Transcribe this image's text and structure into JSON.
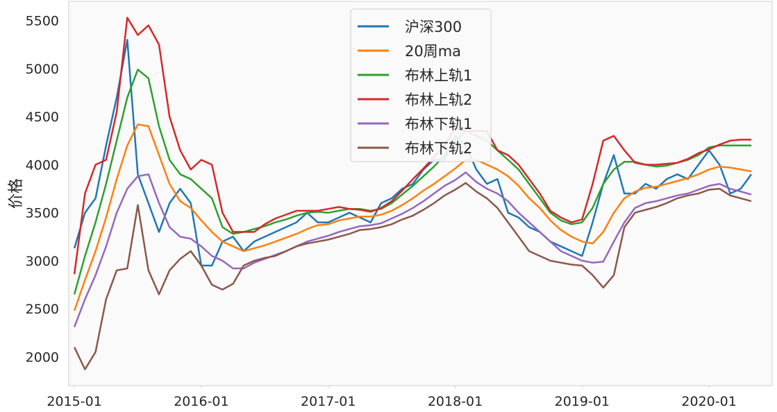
{
  "chart_data": {
    "type": "line",
    "title": "",
    "xlabel": "",
    "ylabel": "价格",
    "ylim": [
      1700,
      5700
    ],
    "xlim": [
      "2014-12-15",
      "2020-06-30"
    ],
    "grid": false,
    "legend_position": "top-center",
    "x_ticks": [
      "2015-01",
      "2016-01",
      "2017-01",
      "2018-01",
      "2019-01",
      "2020-01"
    ],
    "y_ticks": [
      2000,
      2500,
      3000,
      3500,
      4000,
      4500,
      5000,
      5500
    ],
    "x": [
      "2015-01",
      "2015-02",
      "2015-03",
      "2015-04",
      "2015-05",
      "2015-06",
      "2015-07",
      "2015-08",
      "2015-09",
      "2015-10",
      "2015-11",
      "2015-12",
      "2016-01",
      "2016-02",
      "2016-03",
      "2016-04",
      "2016-05",
      "2016-06",
      "2016-07",
      "2016-08",
      "2016-09",
      "2016-10",
      "2016-11",
      "2016-12",
      "2017-01",
      "2017-02",
      "2017-03",
      "2017-04",
      "2017-05",
      "2017-06",
      "2017-07",
      "2017-08",
      "2017-09",
      "2017-10",
      "2017-11",
      "2017-12",
      "2018-01",
      "2018-02",
      "2018-03",
      "2018-04",
      "2018-05",
      "2018-06",
      "2018-07",
      "2018-08",
      "2018-09",
      "2018-10",
      "2018-11",
      "2018-12",
      "2019-01",
      "2019-02",
      "2019-03",
      "2019-04",
      "2019-05",
      "2019-06",
      "2019-07",
      "2019-08",
      "2019-09",
      "2019-10",
      "2019-11",
      "2019-12",
      "2020-01",
      "2020-02",
      "2020-03",
      "2020-04",
      "2020-05"
    ],
    "series": [
      {
        "name": "沪深300",
        "color": "#1f77b4",
        "values": [
          3130,
          3500,
          3650,
          4200,
          4700,
          5300,
          3900,
          3600,
          3300,
          3600,
          3750,
          3600,
          2950,
          2950,
          3200,
          3250,
          3100,
          3200,
          3250,
          3300,
          3350,
          3400,
          3500,
          3400,
          3400,
          3450,
          3500,
          3450,
          3400,
          3600,
          3650,
          3750,
          3800,
          3950,
          4050,
          4050,
          4300,
          4200,
          3950,
          3800,
          3850,
          3500,
          3450,
          3350,
          3300,
          3200,
          3150,
          3100,
          3050,
          3400,
          3800,
          4100,
          3700,
          3700,
          3800,
          3750,
          3850,
          3900,
          3850,
          4000,
          4150,
          4000,
          3700,
          3750,
          3900
        ]
      },
      {
        "name": "20周ma",
        "color": "#ff7f0e",
        "values": [
          2480,
          2800,
          3100,
          3450,
          3850,
          4200,
          4420,
          4400,
          4100,
          3800,
          3620,
          3550,
          3420,
          3300,
          3200,
          3150,
          3100,
          3130,
          3160,
          3200,
          3240,
          3280,
          3330,
          3370,
          3380,
          3420,
          3440,
          3460,
          3460,
          3480,
          3520,
          3580,
          3650,
          3730,
          3800,
          3880,
          3960,
          4050,
          4050,
          4000,
          3950,
          3880,
          3780,
          3650,
          3550,
          3420,
          3320,
          3250,
          3200,
          3180,
          3300,
          3500,
          3650,
          3720,
          3760,
          3770,
          3800,
          3830,
          3860,
          3900,
          3950,
          3980,
          3970,
          3950,
          3930
        ]
      },
      {
        "name": "布林上轨1",
        "color": "#2ca02c",
        "values": [
          2650,
          3050,
          3400,
          3800,
          4250,
          4700,
          4990,
          4900,
          4400,
          4050,
          3900,
          3850,
          3750,
          3650,
          3350,
          3280,
          3300,
          3330,
          3360,
          3400,
          3430,
          3470,
          3500,
          3510,
          3500,
          3520,
          3540,
          3540,
          3520,
          3540,
          3600,
          3690,
          3780,
          3880,
          3980,
          4100,
          4250,
          4350,
          4300,
          4250,
          4150,
          4050,
          3950,
          3800,
          3650,
          3500,
          3420,
          3380,
          3400,
          3550,
          3800,
          3950,
          4030,
          4030,
          4000,
          3980,
          3990,
          4020,
          4050,
          4100,
          4180,
          4200,
          4200,
          4200,
          4200
        ]
      },
      {
        "name": "布林上轨2",
        "color": "#d62728",
        "values": [
          2860,
          3700,
          4000,
          4050,
          4550,
          5530,
          5350,
          5450,
          5250,
          4500,
          4150,
          3950,
          4050,
          4000,
          3500,
          3300,
          3300,
          3300,
          3380,
          3440,
          3480,
          3520,
          3520,
          3520,
          3540,
          3560,
          3540,
          3530,
          3510,
          3550,
          3620,
          3730,
          3850,
          3960,
          4080,
          4200,
          4380,
          4350,
          4350,
          4350,
          4150,
          4100,
          4000,
          3850,
          3700,
          3520,
          3450,
          3400,
          3430,
          3800,
          4250,
          4300,
          4150,
          4020,
          4000,
          4000,
          4010,
          4020,
          4060,
          4120,
          4160,
          4210,
          4250,
          4260,
          4260
        ]
      },
      {
        "name": "布林下轨1",
        "color": "#9467bd",
        "values": [
          2310,
          2600,
          2850,
          3150,
          3500,
          3750,
          3880,
          3900,
          3600,
          3350,
          3250,
          3230,
          3150,
          3050,
          3000,
          2920,
          2920,
          2980,
          3020,
          3060,
          3100,
          3150,
          3200,
          3230,
          3260,
          3300,
          3330,
          3360,
          3370,
          3390,
          3440,
          3490,
          3550,
          3620,
          3700,
          3780,
          3840,
          3920,
          3820,
          3750,
          3700,
          3620,
          3500,
          3400,
          3300,
          3200,
          3100,
          3050,
          3000,
          2980,
          2990,
          3200,
          3400,
          3550,
          3600,
          3620,
          3650,
          3680,
          3700,
          3740,
          3780,
          3800,
          3750,
          3720,
          3690
        ]
      },
      {
        "name": "布林下轨2",
        "color": "#8c564b",
        "values": [
          2100,
          1870,
          2050,
          2600,
          2900,
          2920,
          3580,
          2900,
          2650,
          2900,
          3020,
          3100,
          2950,
          2750,
          2700,
          2760,
          2950,
          3000,
          3030,
          3050,
          3100,
          3150,
          3180,
          3200,
          3220,
          3250,
          3280,
          3320,
          3330,
          3350,
          3380,
          3430,
          3470,
          3530,
          3600,
          3680,
          3740,
          3810,
          3720,
          3650,
          3550,
          3400,
          3250,
          3100,
          3050,
          3000,
          2980,
          2960,
          2950,
          2850,
          2720,
          2850,
          3350,
          3500,
          3530,
          3560,
          3600,
          3650,
          3680,
          3700,
          3740,
          3750,
          3680,
          3650,
          3620
        ]
      }
    ]
  }
}
